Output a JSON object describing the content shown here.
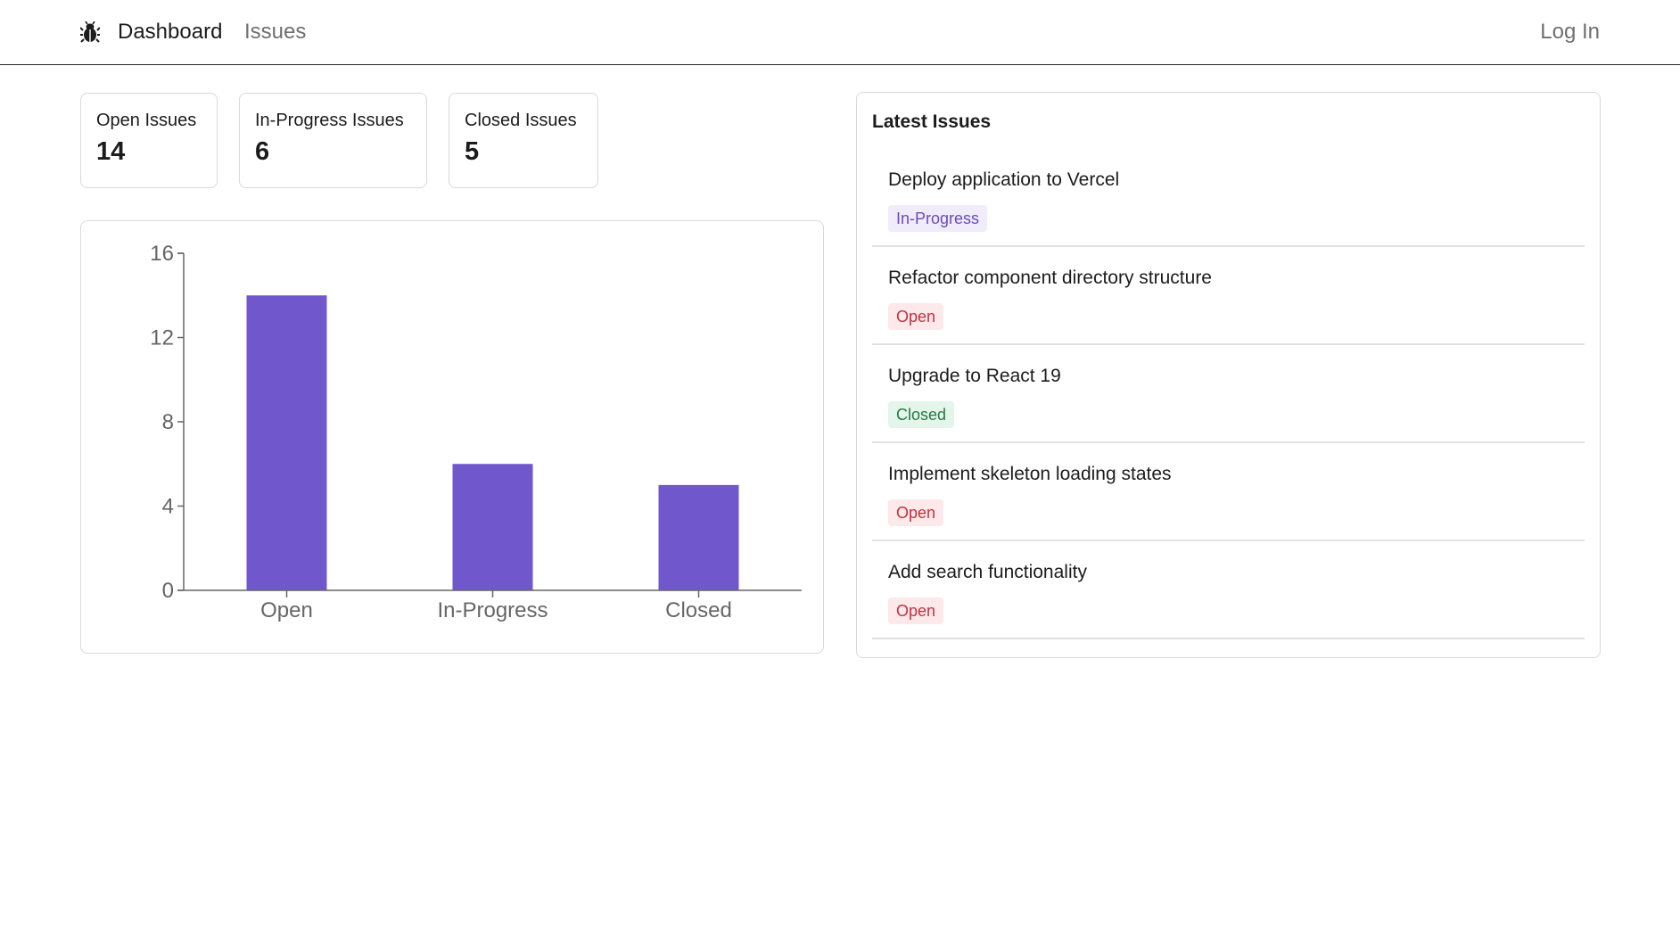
{
  "nav": {
    "logo_icon": "bug-icon",
    "dashboard": "Dashboard",
    "issues": "Issues",
    "login": "Log In"
  },
  "stats": {
    "open": {
      "label": "Open Issues",
      "value": "14"
    },
    "in_progress": {
      "label": "In-Progress Issues",
      "value": "6"
    },
    "closed": {
      "label": "Closed Issues",
      "value": "5"
    }
  },
  "latest": {
    "title": "Latest Issues",
    "issues": [
      {
        "title": "Deploy application to Vercel",
        "status": "In-Progress"
      },
      {
        "title": "Refactor component directory structure",
        "status": "Open"
      },
      {
        "title": "Upgrade to React 19",
        "status": "Closed"
      },
      {
        "title": "Implement skeleton loading states",
        "status": "Open"
      },
      {
        "title": "Add search functionality",
        "status": "Open"
      }
    ]
  },
  "colors": {
    "bar": "#7057cc",
    "in_progress_badge": "#6b4ab8",
    "open_badge": "#c3313f",
    "closed_badge": "#237a46"
  },
  "chart_data": {
    "type": "bar",
    "categories": [
      "Open",
      "In-Progress",
      "Closed"
    ],
    "values": [
      14,
      6,
      5
    ],
    "yticks": [
      0,
      4,
      8,
      12,
      16
    ],
    "ylim": [
      0,
      16
    ],
    "title": "",
    "xlabel": "",
    "ylabel": ""
  }
}
